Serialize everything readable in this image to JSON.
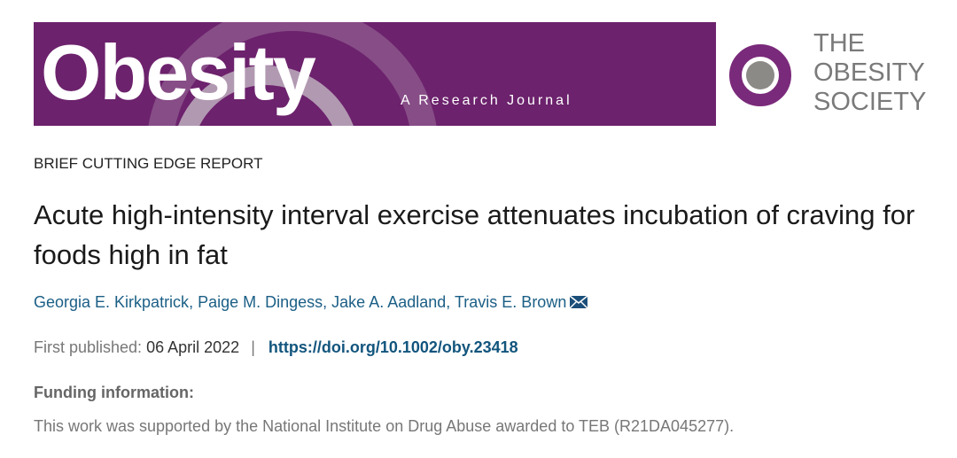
{
  "banner": {
    "journal": "Obesity",
    "subtitle": "A Research Journal",
    "society": [
      "THE",
      "OBESITY",
      "SOCIETY"
    ]
  },
  "article": {
    "type": "BRIEF CUTTING EDGE REPORT",
    "title": "Acute high-intensity interval exercise attenuates incubation of craving for foods high in fat",
    "authors": [
      "Georgia E. Kirkpatrick",
      "Paige M. Dingess",
      "Jake A. Aadland",
      "Travis E. Brown"
    ],
    "author_separator": ", ",
    "first_published_label": "First published:",
    "first_published_date": "06 April 2022",
    "separator": "|",
    "doi": "https://doi.org/10.1002/oby.23418",
    "funding_heading": "Funding information:",
    "funding_text": "This work was supported by the National Institute on Drug Abuse awarded to TEB (R21DA045277)."
  }
}
